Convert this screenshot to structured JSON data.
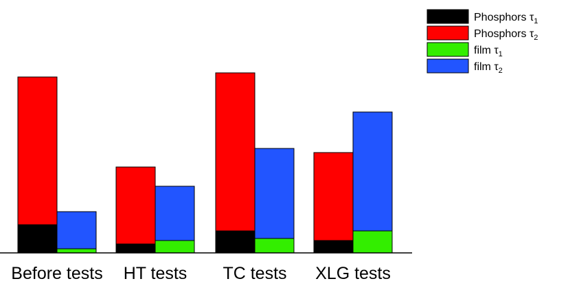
{
  "chart_data": {
    "type": "bar",
    "stacked": true,
    "grouped": true,
    "categories": [
      "Before tests",
      "HT tests",
      "TC tests",
      "XLG tests"
    ],
    "groups": [
      {
        "stack": "Phosphors",
        "series": [
          {
            "name": "Phosphors τ1",
            "color": "#000000",
            "values": [
              41,
              13,
              32,
              18
            ]
          },
          {
            "name": "Phosphors τ2",
            "color": "#ff0000",
            "values": [
              215,
              112,
              230,
              128
            ]
          }
        ]
      },
      {
        "stack": "film",
        "series": [
          {
            "name": "film τ1",
            "color": "#33ee00",
            "values": [
              6,
              18,
              21,
              32
            ]
          },
          {
            "name": "film τ2",
            "color": "#2255ff",
            "values": [
              54,
              79,
              131,
              173
            ]
          }
        ]
      }
    ],
    "legend": {
      "position": "top-right",
      "entries": [
        {
          "base": "Phosphors τ",
          "sub": "1",
          "color": "#000000"
        },
        {
          "base": "Phosphors τ",
          "sub": "2",
          "color": "#ff0000"
        },
        {
          "base": "film τ",
          "sub": "1",
          "color": "#33ee00"
        },
        {
          "base": "film τ",
          "sub": "2",
          "color": "#2255ff"
        }
      ]
    },
    "ylim": [
      0,
      365
    ],
    "xlabel": "",
    "ylabel": "",
    "title": "",
    "grid": false
  }
}
